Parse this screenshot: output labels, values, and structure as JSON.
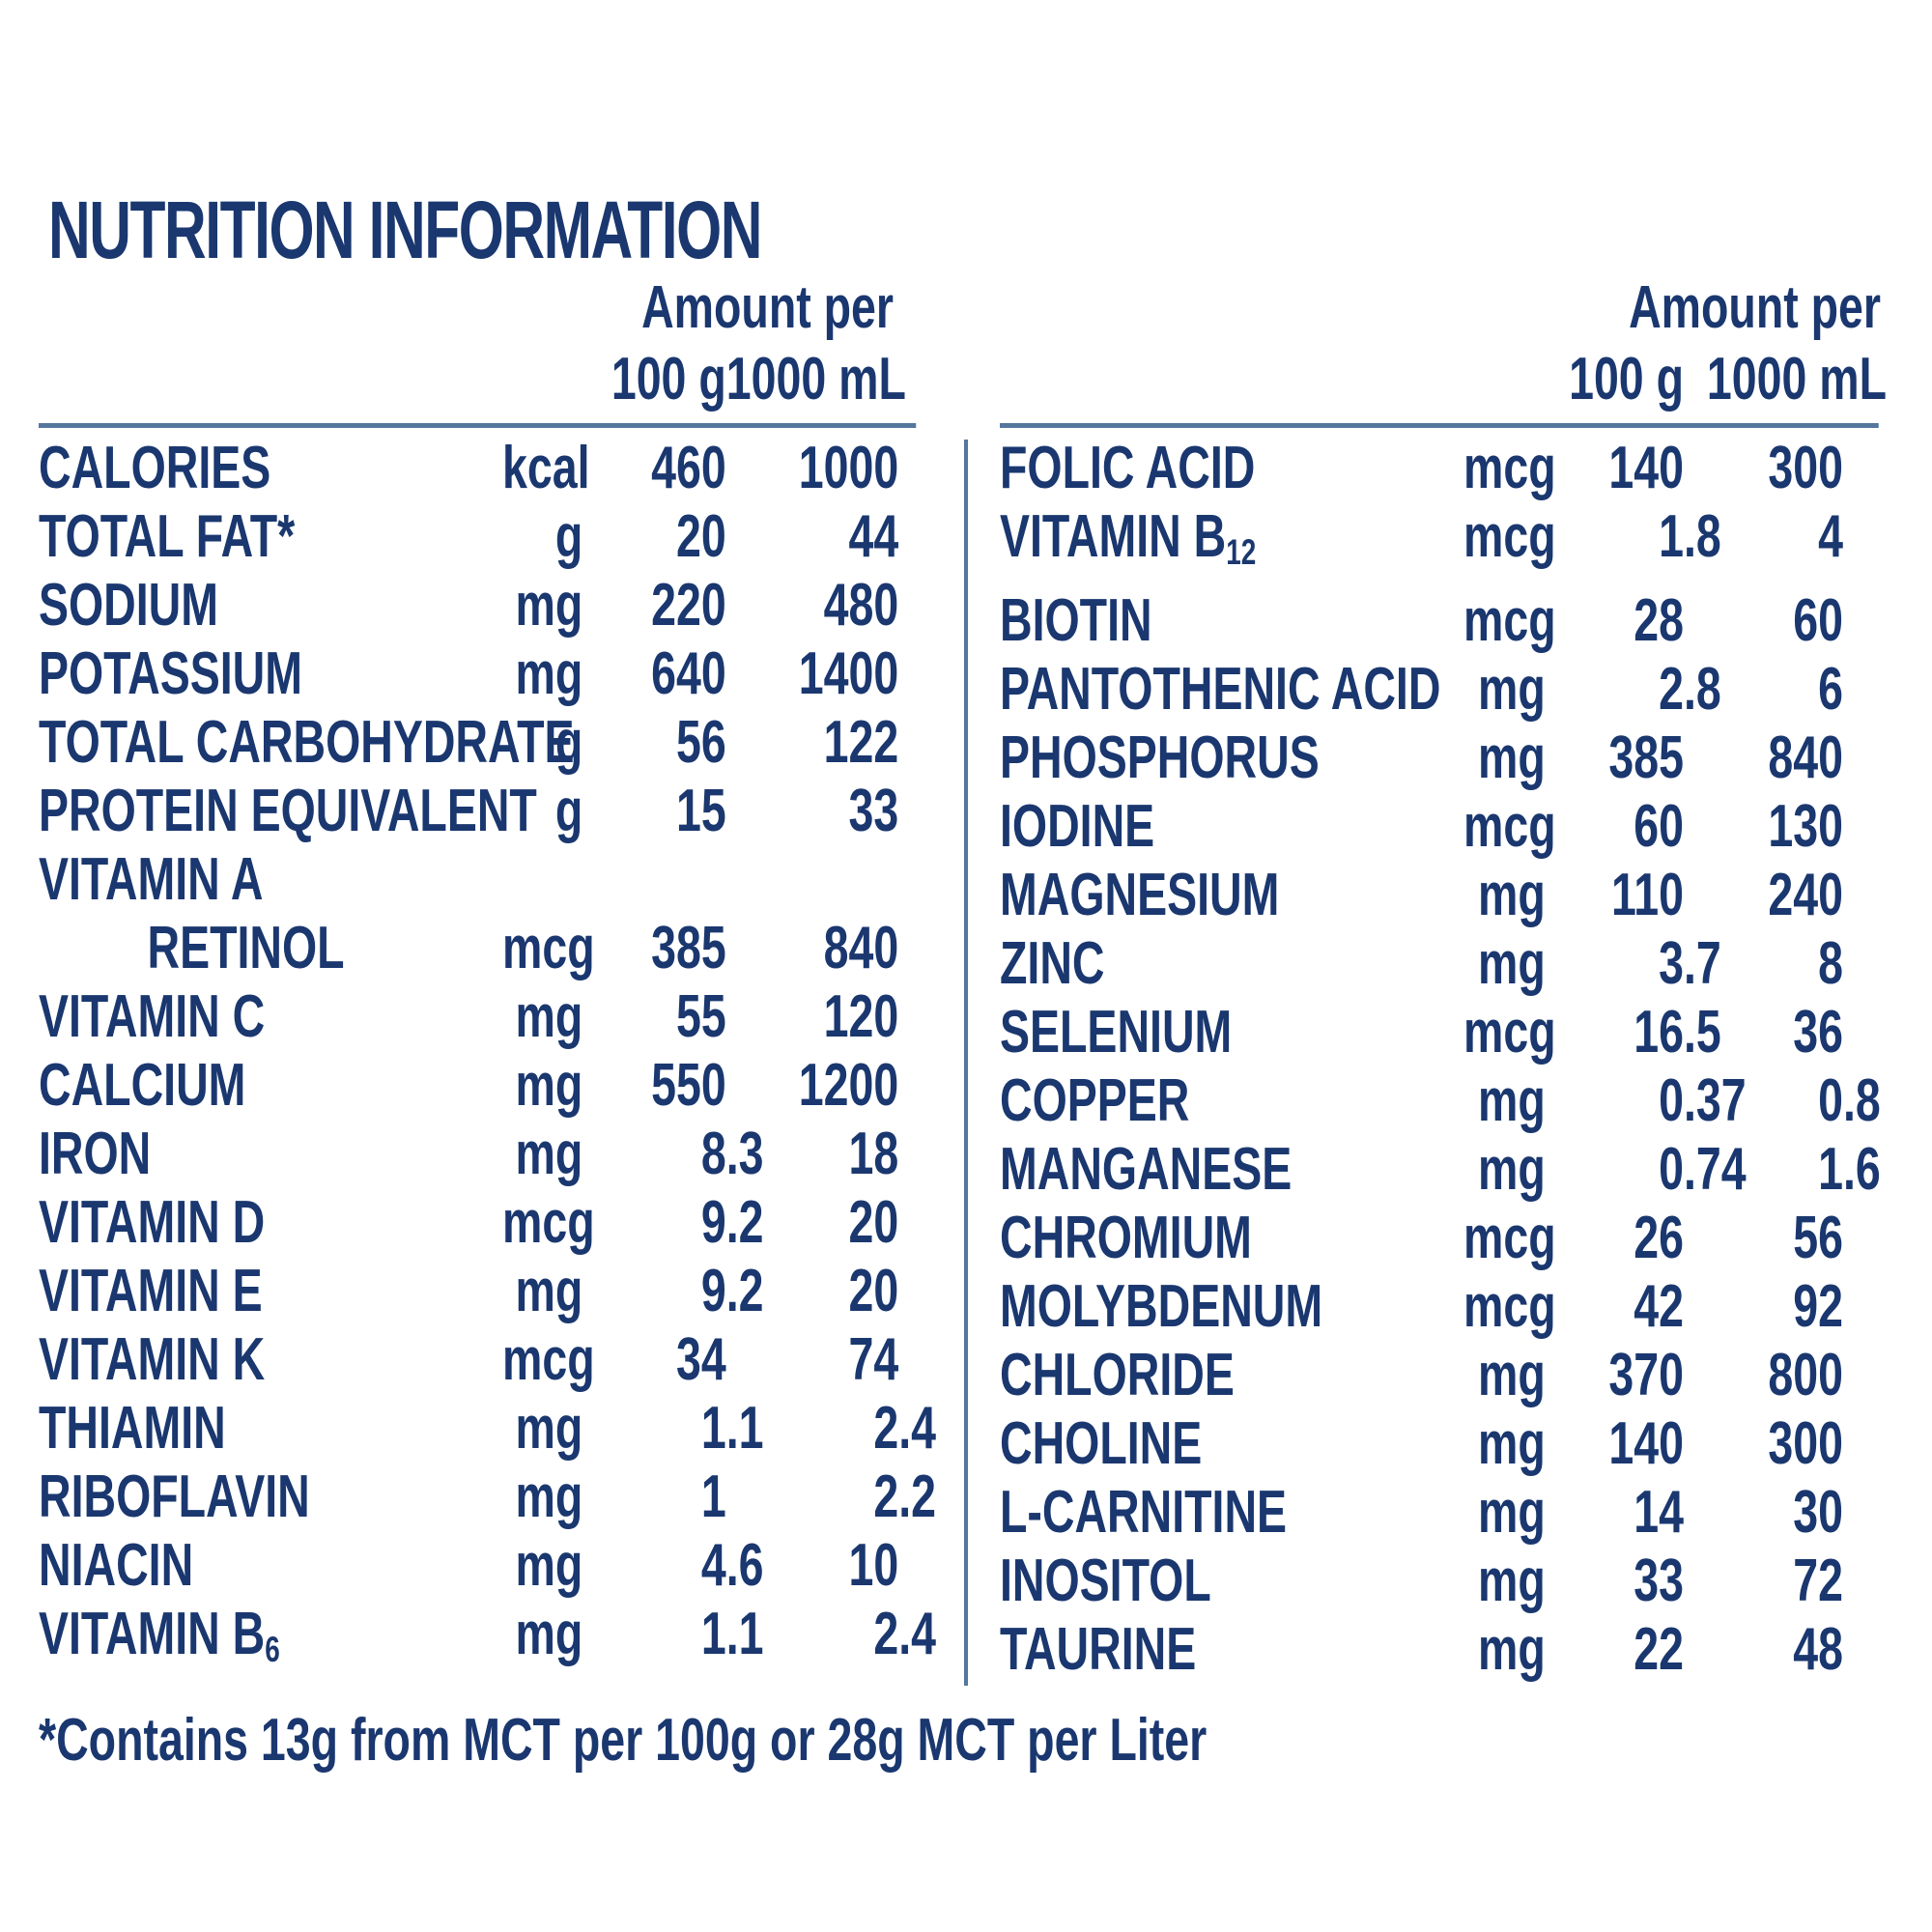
{
  "title": "NUTRITION INFORMATION",
  "header": {
    "amount_per": "Amount per",
    "col_100g": "100 g",
    "col_1000ml": "1000 mL"
  },
  "left_rows": [
    {
      "name": "CALORIES",
      "unit": "kcal",
      "v100": "460",
      "v1000": "1000"
    },
    {
      "name": "TOTAL FAT*",
      "unit": "g",
      "v100": "20",
      "v1000": "44"
    },
    {
      "name": "SODIUM",
      "unit": "mg",
      "v100": "220",
      "v1000": "480"
    },
    {
      "name": "POTASSIUM",
      "unit": "mg",
      "v100": "640",
      "v1000": "1400"
    },
    {
      "name": "TOTAL CARBOHYDRATE",
      "unit": "g",
      "v100": "56",
      "v1000": "122"
    },
    {
      "name": "PROTEIN EQUIVALENT",
      "unit": "g",
      "v100": "15",
      "v1000": "33"
    },
    {
      "name": "VITAMIN A",
      "unit": "",
      "v100": "",
      "v1000": ""
    },
    {
      "name": "RETINOL",
      "indent": true,
      "unit": "mcg",
      "v100": "385",
      "v1000": "840"
    },
    {
      "name": "VITAMIN C",
      "unit": "mg",
      "v100": "55",
      "v1000": "120"
    },
    {
      "name": "CALCIUM",
      "unit": "mg",
      "v100": "550",
      "v1000": "1200"
    },
    {
      "name": "IRON",
      "unit": "mg",
      "v100": "8.3",
      "v1000": "18"
    },
    {
      "name": "VITAMIN D",
      "unit": "mcg",
      "v100": "9.2",
      "v1000": "20"
    },
    {
      "name": "VITAMIN E",
      "unit": "mg",
      "v100": "9.2",
      "v1000": "20"
    },
    {
      "name": "VITAMIN K",
      "unit": "mcg",
      "v100": "34",
      "v1000": "74"
    },
    {
      "name": "THIAMIN",
      "unit": "mg",
      "v100": "1.1",
      "v1000": "2.4"
    },
    {
      "name": "RIBOFLAVIN",
      "unit": "mg",
      "v100": "1",
      "v1000": "2.2"
    },
    {
      "name": "NIACIN",
      "unit": "mg",
      "v100": "4.6",
      "v1000": "10"
    },
    {
      "name": "VITAMIN B",
      "sub": "6",
      "unit": "mg",
      "v100": "1.1",
      "v1000": "2.4"
    }
  ],
  "right_rows": [
    {
      "name": "FOLIC ACID",
      "unit": "mcg",
      "v100": "140",
      "v1000": "300"
    },
    {
      "name": "VITAMIN B",
      "sub": "12",
      "unit": "mcg",
      "v100": "1.8",
      "v1000": "4"
    },
    {
      "name": "BIOTIN",
      "unit": "mcg",
      "v100": "28",
      "v1000": "60"
    },
    {
      "name": "PANTOTHENIC ACID",
      "unit": "mg",
      "v100": "2.8",
      "v1000": "6"
    },
    {
      "name": "PHOSPHORUS",
      "unit": "mg",
      "v100": "385",
      "v1000": "840"
    },
    {
      "name": "IODINE",
      "unit": "mcg",
      "v100": "60",
      "v1000": "130"
    },
    {
      "name": "MAGNESIUM",
      "unit": "mg",
      "v100": "110",
      "v1000": "240"
    },
    {
      "name": "ZINC",
      "unit": "mg",
      "v100": "3.7",
      "v1000": "8"
    },
    {
      "name": "SELENIUM",
      "unit": "mcg",
      "v100": "16.5",
      "v1000": "36"
    },
    {
      "name": "COPPER",
      "unit": "mg",
      "v100": "0.37",
      "v1000": "0.8"
    },
    {
      "name": "MANGANESE",
      "unit": "mg",
      "v100": "0.74",
      "v1000": "1.6"
    },
    {
      "name": "CHROMIUM",
      "unit": "mcg",
      "v100": "26",
      "v1000": "56"
    },
    {
      "name": "MOLYBDENUM",
      "unit": "mcg",
      "v100": "42",
      "v1000": "92"
    },
    {
      "name": "CHLORIDE",
      "unit": "mg",
      "v100": "370",
      "v1000": "800"
    },
    {
      "name": "CHOLINE",
      "unit": "mg",
      "v100": "140",
      "v1000": "300"
    },
    {
      "name": "L-CARNITINE",
      "unit": "mg",
      "v100": "14",
      "v1000": "30"
    },
    {
      "name": "INOSITOL",
      "unit": "mg",
      "v100": "33",
      "v1000": "72"
    },
    {
      "name": "TAURINE",
      "unit": "mg",
      "v100": "22",
      "v1000": "48"
    }
  ],
  "footnote": "*Contains 13g from MCT per 100g or 28g MCT per Liter",
  "colors": {
    "text_navy": "#1a376f",
    "rule_blue": "#54779e",
    "background": "#ffffff"
  }
}
